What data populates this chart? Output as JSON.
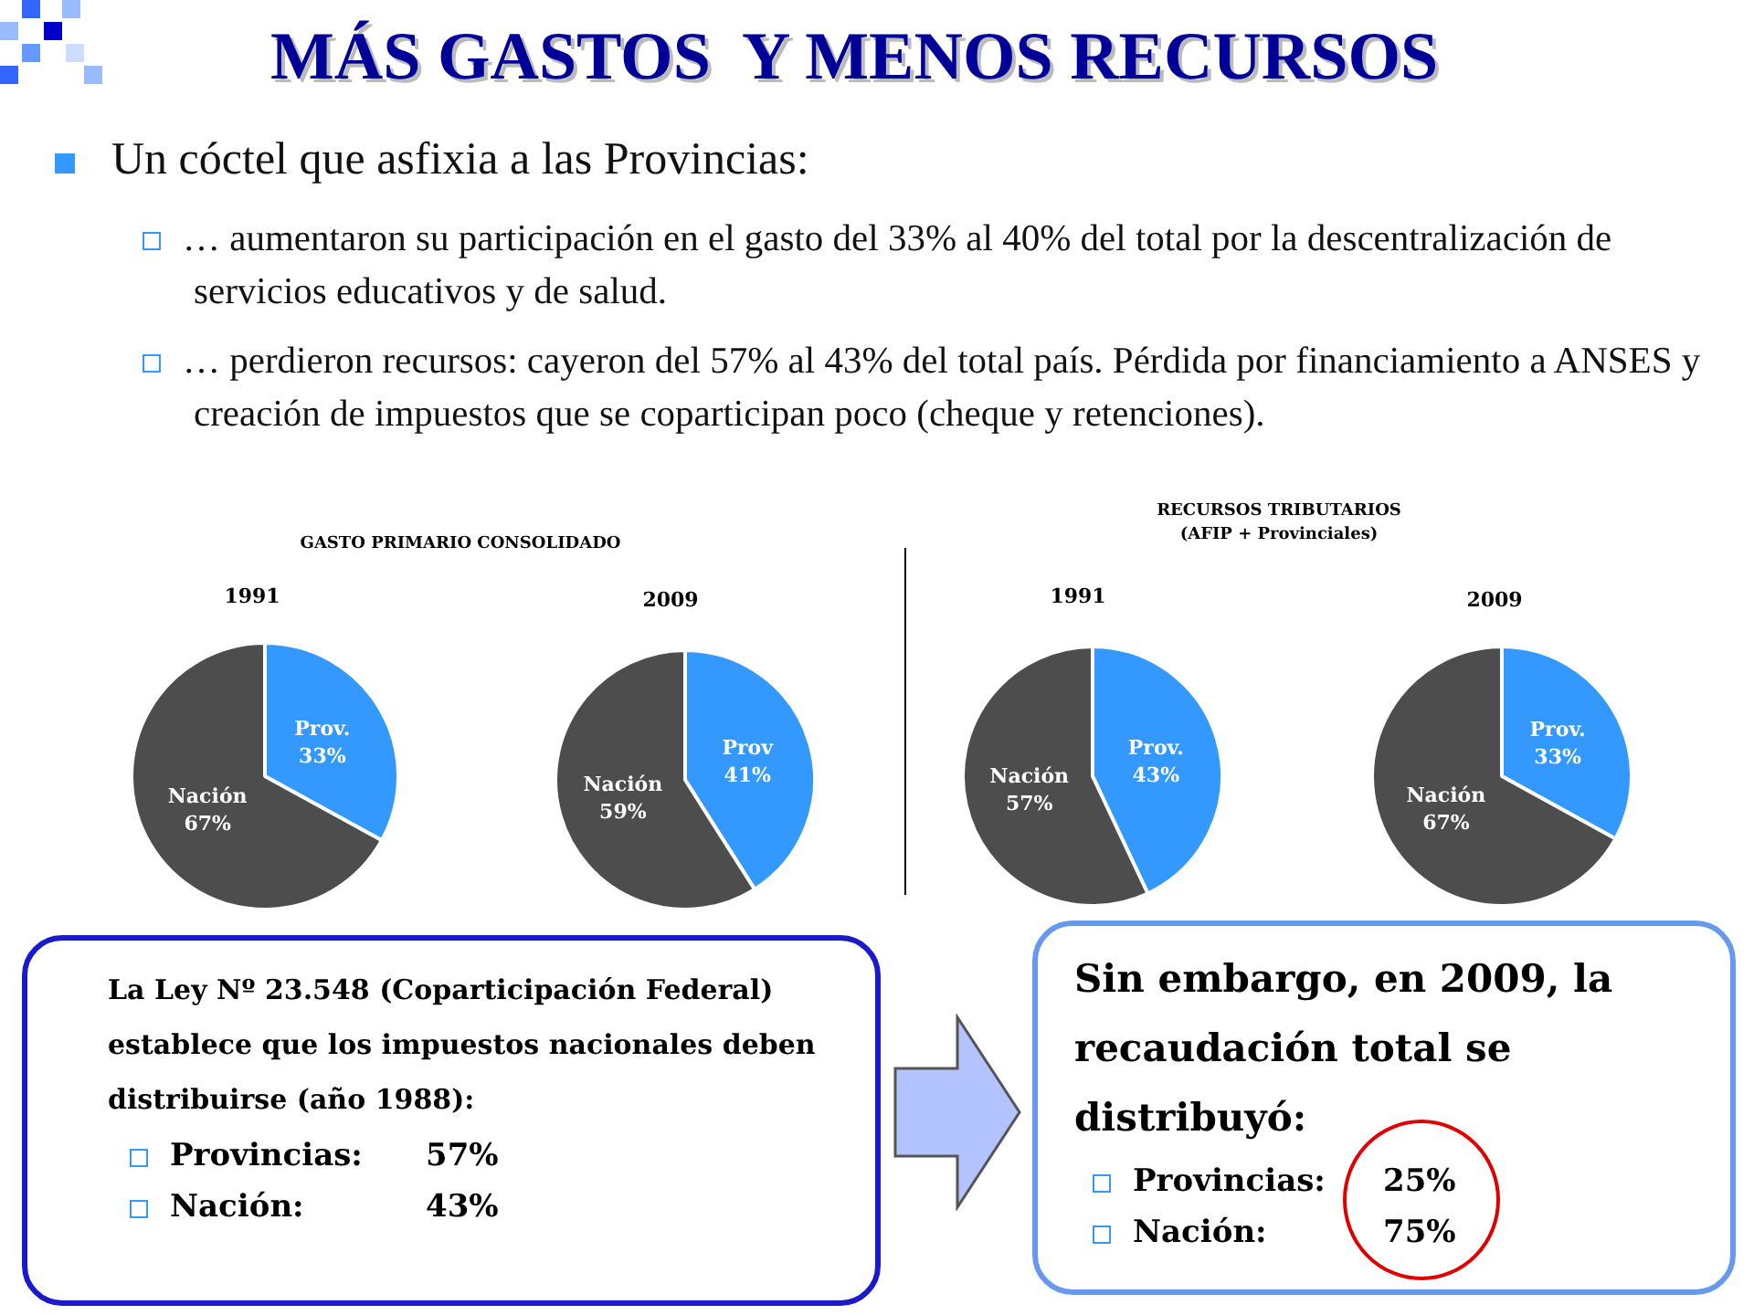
{
  "chart_data": [
    {
      "type": "other",
      "title": "MÁS GASTOS  Y MENOS RECURSOS",
      "annotations": [
        "Un cóctel que asfixia a las Provincias:",
        "… aumentaron su participación en el gasto del 33% al 40% del total por la descentralización de servicios educativos y de salud.",
        "… perdieron recursos: cayeron del 57% al 43% del total país. Pérdida por financiamiento a ANSES y creación de impuestos que se coparticipan poco (cheque y retenciones)."
      ]
    },
    {
      "type": "pie",
      "title": "GASTO PRIMARIO CONSOLIDADO",
      "subtitle": "1991",
      "categories": [
        "Prov.",
        "Nación"
      ],
      "values": [
        33,
        67
      ],
      "value_labels": [
        "33%",
        "67%"
      ],
      "colors": [
        "#3399ff",
        "#4d4d4d"
      ]
    },
    {
      "type": "pie",
      "subtitle": "2009",
      "categories": [
        "Prov",
        "Nación"
      ],
      "values": [
        41,
        59
      ],
      "value_labels": [
        "41%",
        "59%"
      ],
      "colors": [
        "#3399ff",
        "#4d4d4d"
      ]
    },
    {
      "type": "pie",
      "title": "RECURSOS TRIBUTARIOS\n(AFIP + Provinciales)",
      "subtitle": "1991",
      "categories": [
        "Prov.",
        "Nación"
      ],
      "values": [
        43,
        57
      ],
      "value_labels": [
        "43%",
        "57%"
      ],
      "colors": [
        "#3399ff",
        "#4d4d4d"
      ]
    },
    {
      "type": "pie",
      "subtitle": "2009",
      "categories": [
        "Prov.",
        "Nación"
      ],
      "values": [
        33,
        67
      ],
      "value_labels": [
        "33%",
        "67%"
      ],
      "colors": [
        "#3399ff",
        "#4d4d4d"
      ]
    },
    {
      "type": "other",
      "annotations": [
        "La Ley Nº 23.548 (Coparticipación Federal) establece que los impuestos nacionales deben distribuirse (año 1988):",
        "Provincias: 57%",
        "Nación: 43%"
      ]
    },
    {
      "type": "other",
      "annotations": [
        "Sin embargo, en 2009, la recaudación total se distribuyó:",
        "Provincias: 25%",
        "Nación: 75%"
      ]
    }
  ]
}
